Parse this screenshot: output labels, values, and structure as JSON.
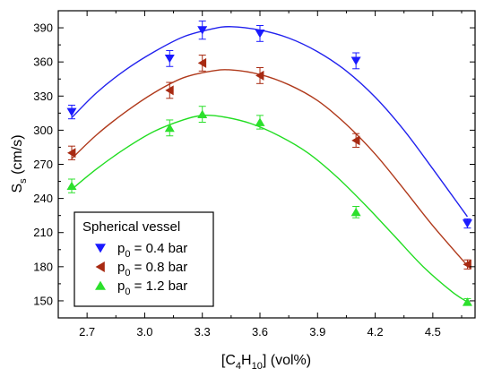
{
  "chart_data": {
    "type": "scatter",
    "xlabel": {
      "main": "[C",
      "sub1": "4",
      "mid": "H",
      "sub2": "10",
      "tail": "] (vol%)"
    },
    "ylabel": {
      "main": "S",
      "sub": "s",
      "tail": " (cm/s)"
    },
    "xlim": [
      2.55,
      4.72
    ],
    "ylim": [
      135,
      405
    ],
    "xticks": [
      2.7,
      3.0,
      3.3,
      3.6,
      3.9,
      4.2,
      4.5
    ],
    "xtick_labels": [
      "2.7",
      "3.0",
      "3.3",
      "3.6",
      "3.9",
      "4.2",
      "4.5"
    ],
    "yticks": [
      150,
      180,
      210,
      240,
      270,
      300,
      330,
      360,
      390
    ],
    "ytick_labels": [
      "150",
      "180",
      "210",
      "240",
      "270",
      "300",
      "330",
      "360",
      "390"
    ],
    "grid": false,
    "legend": {
      "title": "Spherical vessel",
      "placement": "bottom-left"
    },
    "series": [
      {
        "name": {
          "main": "p",
          "sub": "0",
          "tail": " = 0.4 bar"
        },
        "marker": "triangle-down",
        "color": "#1a1aff",
        "fit_color": "#2222ee",
        "points": [
          {
            "x": 2.62,
            "y": 316,
            "err": 6
          },
          {
            "x": 3.13,
            "y": 363,
            "err": 7
          },
          {
            "x": 3.3,
            "y": 388,
            "err": 8
          },
          {
            "x": 3.6,
            "y": 385,
            "err": 7
          },
          {
            "x": 4.1,
            "y": 361,
            "err": 7
          },
          {
            "x": 4.68,
            "y": 218,
            "err": 4
          }
        ],
        "fit": [
          {
            "x": 2.62,
            "y": 311
          },
          {
            "x": 2.75,
            "y": 333
          },
          {
            "x": 2.9,
            "y": 353
          },
          {
            "x": 3.05,
            "y": 369
          },
          {
            "x": 3.2,
            "y": 382
          },
          {
            "x": 3.35,
            "y": 389
          },
          {
            "x": 3.45,
            "y": 391
          },
          {
            "x": 3.6,
            "y": 388
          },
          {
            "x": 3.75,
            "y": 381
          },
          {
            "x": 3.9,
            "y": 369
          },
          {
            "x": 4.05,
            "y": 352
          },
          {
            "x": 4.2,
            "y": 329
          },
          {
            "x": 4.35,
            "y": 300
          },
          {
            "x": 4.5,
            "y": 266
          },
          {
            "x": 4.68,
            "y": 224
          }
        ]
      },
      {
        "name": {
          "main": "p",
          "sub": "0",
          "tail": " = 0.8 bar"
        },
        "marker": "triangle-left",
        "color": "#a82a12",
        "fit_color": "#b03a1c",
        "points": [
          {
            "x": 2.62,
            "y": 280,
            "err": 6
          },
          {
            "x": 3.13,
            "y": 335,
            "err": 7
          },
          {
            "x": 3.3,
            "y": 359,
            "err": 7
          },
          {
            "x": 3.6,
            "y": 348,
            "err": 7
          },
          {
            "x": 4.1,
            "y": 291,
            "err": 6
          },
          {
            "x": 4.68,
            "y": 182,
            "err": 4
          }
        ],
        "fit": [
          {
            "x": 2.62,
            "y": 275
          },
          {
            "x": 2.75,
            "y": 296
          },
          {
            "x": 2.9,
            "y": 316
          },
          {
            "x": 3.05,
            "y": 333
          },
          {
            "x": 3.2,
            "y": 346
          },
          {
            "x": 3.35,
            "y": 352
          },
          {
            "x": 3.45,
            "y": 353
          },
          {
            "x": 3.6,
            "y": 349
          },
          {
            "x": 3.75,
            "y": 340
          },
          {
            "x": 3.9,
            "y": 326
          },
          {
            "x": 4.05,
            "y": 305
          },
          {
            "x": 4.2,
            "y": 279
          },
          {
            "x": 4.35,
            "y": 248
          },
          {
            "x": 4.5,
            "y": 216
          },
          {
            "x": 4.68,
            "y": 181
          }
        ]
      },
      {
        "name": {
          "main": "p",
          "sub": "0",
          "tail": " = 1.2 bar"
        },
        "marker": "triangle-up",
        "color": "#2ce02c",
        "fit_color": "#22dd22",
        "points": [
          {
            "x": 2.62,
            "y": 251,
            "err": 6
          },
          {
            "x": 3.13,
            "y": 302,
            "err": 7
          },
          {
            "x": 3.3,
            "y": 314,
            "err": 7
          },
          {
            "x": 3.6,
            "y": 307,
            "err": 6
          },
          {
            "x": 4.1,
            "y": 228,
            "err": 5
          },
          {
            "x": 4.68,
            "y": 149,
            "err": 3
          }
        ],
        "fit": [
          {
            "x": 2.62,
            "y": 248
          },
          {
            "x": 2.75,
            "y": 266
          },
          {
            "x": 2.9,
            "y": 284
          },
          {
            "x": 3.05,
            "y": 299
          },
          {
            "x": 3.2,
            "y": 309
          },
          {
            "x": 3.3,
            "y": 313
          },
          {
            "x": 3.4,
            "y": 312
          },
          {
            "x": 3.55,
            "y": 306
          },
          {
            "x": 3.7,
            "y": 295
          },
          {
            "x": 3.85,
            "y": 280
          },
          {
            "x": 4.0,
            "y": 259
          },
          {
            "x": 4.15,
            "y": 234
          },
          {
            "x": 4.3,
            "y": 207
          },
          {
            "x": 4.45,
            "y": 180
          },
          {
            "x": 4.6,
            "y": 158
          },
          {
            "x": 4.68,
            "y": 149
          }
        ]
      }
    ]
  }
}
